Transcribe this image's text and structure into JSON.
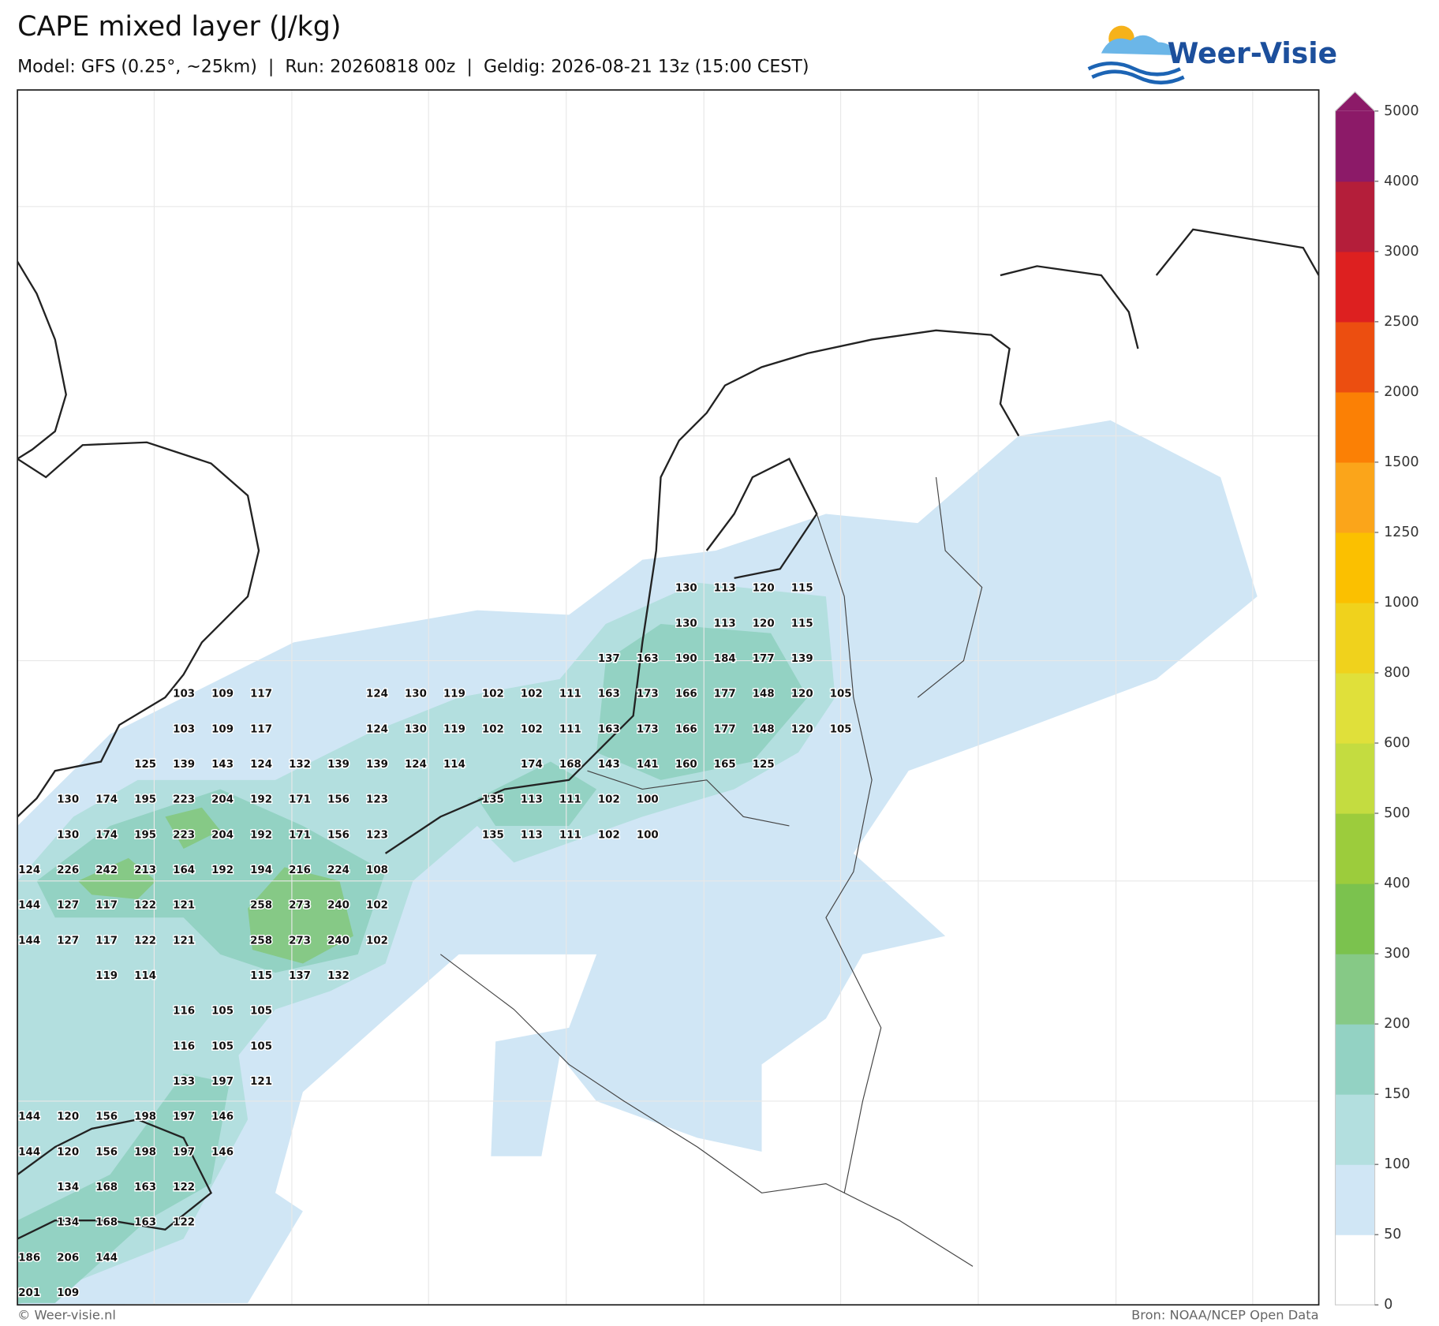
{
  "header": {
    "title": "CAPE mixed layer (J/kg)",
    "subtitle": "Model: GFS (0.25°, ~25km)  |  Run: 20260818 00z  |  Geldig: 2026-08-21 13z (15:00 CEST)",
    "logo": "Weer-Visie"
  },
  "map": {
    "value_labels": [
      [
        null,
        null,
        null,
        null,
        null,
        null,
        null,
        null,
        null,
        null,
        null,
        null,
        null,
        null,
        null,
        null,
        null,
        "130",
        "113",
        "120",
        "115",
        null
      ],
      [
        null,
        null,
        null,
        null,
        null,
        null,
        null,
        null,
        null,
        null,
        null,
        null,
        null,
        null,
        null,
        null,
        null,
        "130",
        "113",
        "120",
        "115",
        null
      ],
      [
        null,
        null,
        null,
        null,
        null,
        null,
        null,
        null,
        null,
        null,
        null,
        null,
        null,
        null,
        null,
        "137",
        "163",
        "190",
        "184",
        "177",
        "139",
        null
      ],
      [
        null,
        null,
        null,
        null,
        "103",
        "109",
        "117",
        null,
        null,
        "124",
        "130",
        "119",
        "102",
        "102",
        "111",
        "163",
        "173",
        "166",
        "177",
        "148",
        "120",
        "105"
      ],
      [
        null,
        null,
        null,
        null,
        "103",
        "109",
        "117",
        null,
        null,
        "124",
        "130",
        "119",
        "102",
        "102",
        "111",
        "163",
        "173",
        "166",
        "177",
        "148",
        "120",
        "105"
      ],
      [
        null,
        null,
        null,
        "125",
        "139",
        "143",
        "124",
        "132",
        "139",
        "139",
        "124",
        "114",
        null,
        "174",
        "168",
        "143",
        "141",
        "160",
        "165",
        "125",
        null,
        null
      ],
      [
        null,
        "130",
        "174",
        "195",
        "223",
        "204",
        "192",
        "171",
        "156",
        "123",
        null,
        null,
        "135",
        "113",
        "111",
        "102",
        "100",
        null,
        null,
        null,
        null,
        null
      ],
      [
        null,
        "130",
        "174",
        "195",
        "223",
        "204",
        "192",
        "171",
        "156",
        "123",
        null,
        null,
        "135",
        "113",
        "111",
        "102",
        "100",
        null,
        null,
        null,
        null,
        null
      ],
      [
        "124",
        "226",
        "242",
        "213",
        "164",
        "192",
        "194",
        "216",
        "224",
        "108",
        null,
        null,
        null,
        null,
        null,
        null,
        null,
        null,
        null,
        null,
        null,
        null
      ],
      [
        "144",
        "127",
        "117",
        "122",
        "121",
        null,
        "258",
        "273",
        "240",
        "102",
        null,
        null,
        null,
        null,
        null,
        null,
        null,
        null,
        null,
        null,
        null,
        null
      ],
      [
        "144",
        "127",
        "117",
        "122",
        "121",
        null,
        "258",
        "273",
        "240",
        "102",
        null,
        null,
        null,
        null,
        null,
        null,
        null,
        null,
        null,
        null,
        null,
        null
      ],
      [
        null,
        null,
        "119",
        "114",
        null,
        null,
        "115",
        "137",
        "132",
        null,
        null,
        null,
        null,
        null,
        null,
        null,
        null,
        null,
        null,
        null,
        null,
        null
      ],
      [
        null,
        null,
        null,
        null,
        "116",
        "105",
        "105",
        null,
        null,
        null,
        null,
        null,
        null,
        null,
        null,
        null,
        null,
        null,
        null,
        null,
        null,
        null
      ],
      [
        null,
        null,
        null,
        null,
        "116",
        "105",
        "105",
        null,
        null,
        null,
        null,
        null,
        null,
        null,
        null,
        null,
        null,
        null,
        null,
        null,
        null,
        null
      ],
      [
        null,
        null,
        null,
        null,
        "133",
        "197",
        "121",
        null,
        null,
        null,
        null,
        null,
        null,
        null,
        null,
        null,
        null,
        null,
        null,
        null,
        null,
        null
      ],
      [
        "144",
        "120",
        "156",
        "198",
        "197",
        "146",
        null,
        null,
        null,
        null,
        null,
        null,
        null,
        null,
        null,
        null,
        null,
        null,
        null,
        null,
        null,
        null
      ],
      [
        "144",
        "120",
        "156",
        "198",
        "197",
        "146",
        null,
        null,
        null,
        null,
        null,
        null,
        null,
        null,
        null,
        null,
        null,
        null,
        null,
        null,
        null,
        null
      ],
      [
        null,
        "134",
        "168",
        "163",
        "122",
        null,
        null,
        null,
        null,
        null,
        null,
        null,
        null,
        null,
        null,
        null,
        null,
        null,
        null,
        null,
        null,
        null
      ],
      [
        null,
        "134",
        "168",
        "163",
        "122",
        null,
        null,
        null,
        null,
        null,
        null,
        null,
        null,
        null,
        null,
        null,
        null,
        null,
        null,
        null,
        null,
        null
      ],
      [
        "186",
        "206",
        "144",
        null,
        null,
        null,
        null,
        null,
        null,
        null,
        null,
        null,
        null,
        null,
        null,
        null,
        null,
        null,
        null,
        null,
        null,
        null
      ],
      [
        "201",
        "109",
        null,
        null,
        null,
        null,
        null,
        null,
        null,
        null,
        null,
        null,
        null,
        null,
        null,
        null,
        null,
        null,
        null,
        null,
        null,
        null
      ]
    ]
  },
  "colorbar": {
    "levels": [
      0,
      50,
      100,
      150,
      200,
      300,
      400,
      500,
      600,
      800,
      1000,
      1250,
      1500,
      2000,
      2500,
      3000,
      4000,
      5000
    ],
    "colors": [
      "#ffffff",
      "#d0e6f5",
      "#b3dfdf",
      "#93d2c3",
      "#86c986",
      "#7bc24e",
      "#9ccc3c",
      "#c4dc40",
      "#e0e03a",
      "#f0d21c",
      "#fbc000",
      "#fba51a",
      "#fb8005",
      "#ec4e10",
      "#dd2020",
      "#b41e3a",
      "#8c1a68"
    ],
    "extend_color": "#8c1a68"
  },
  "footer": {
    "credit": "© Weer-visie.nl",
    "source": "Bron: NOAA/NCEP Open Data"
  }
}
